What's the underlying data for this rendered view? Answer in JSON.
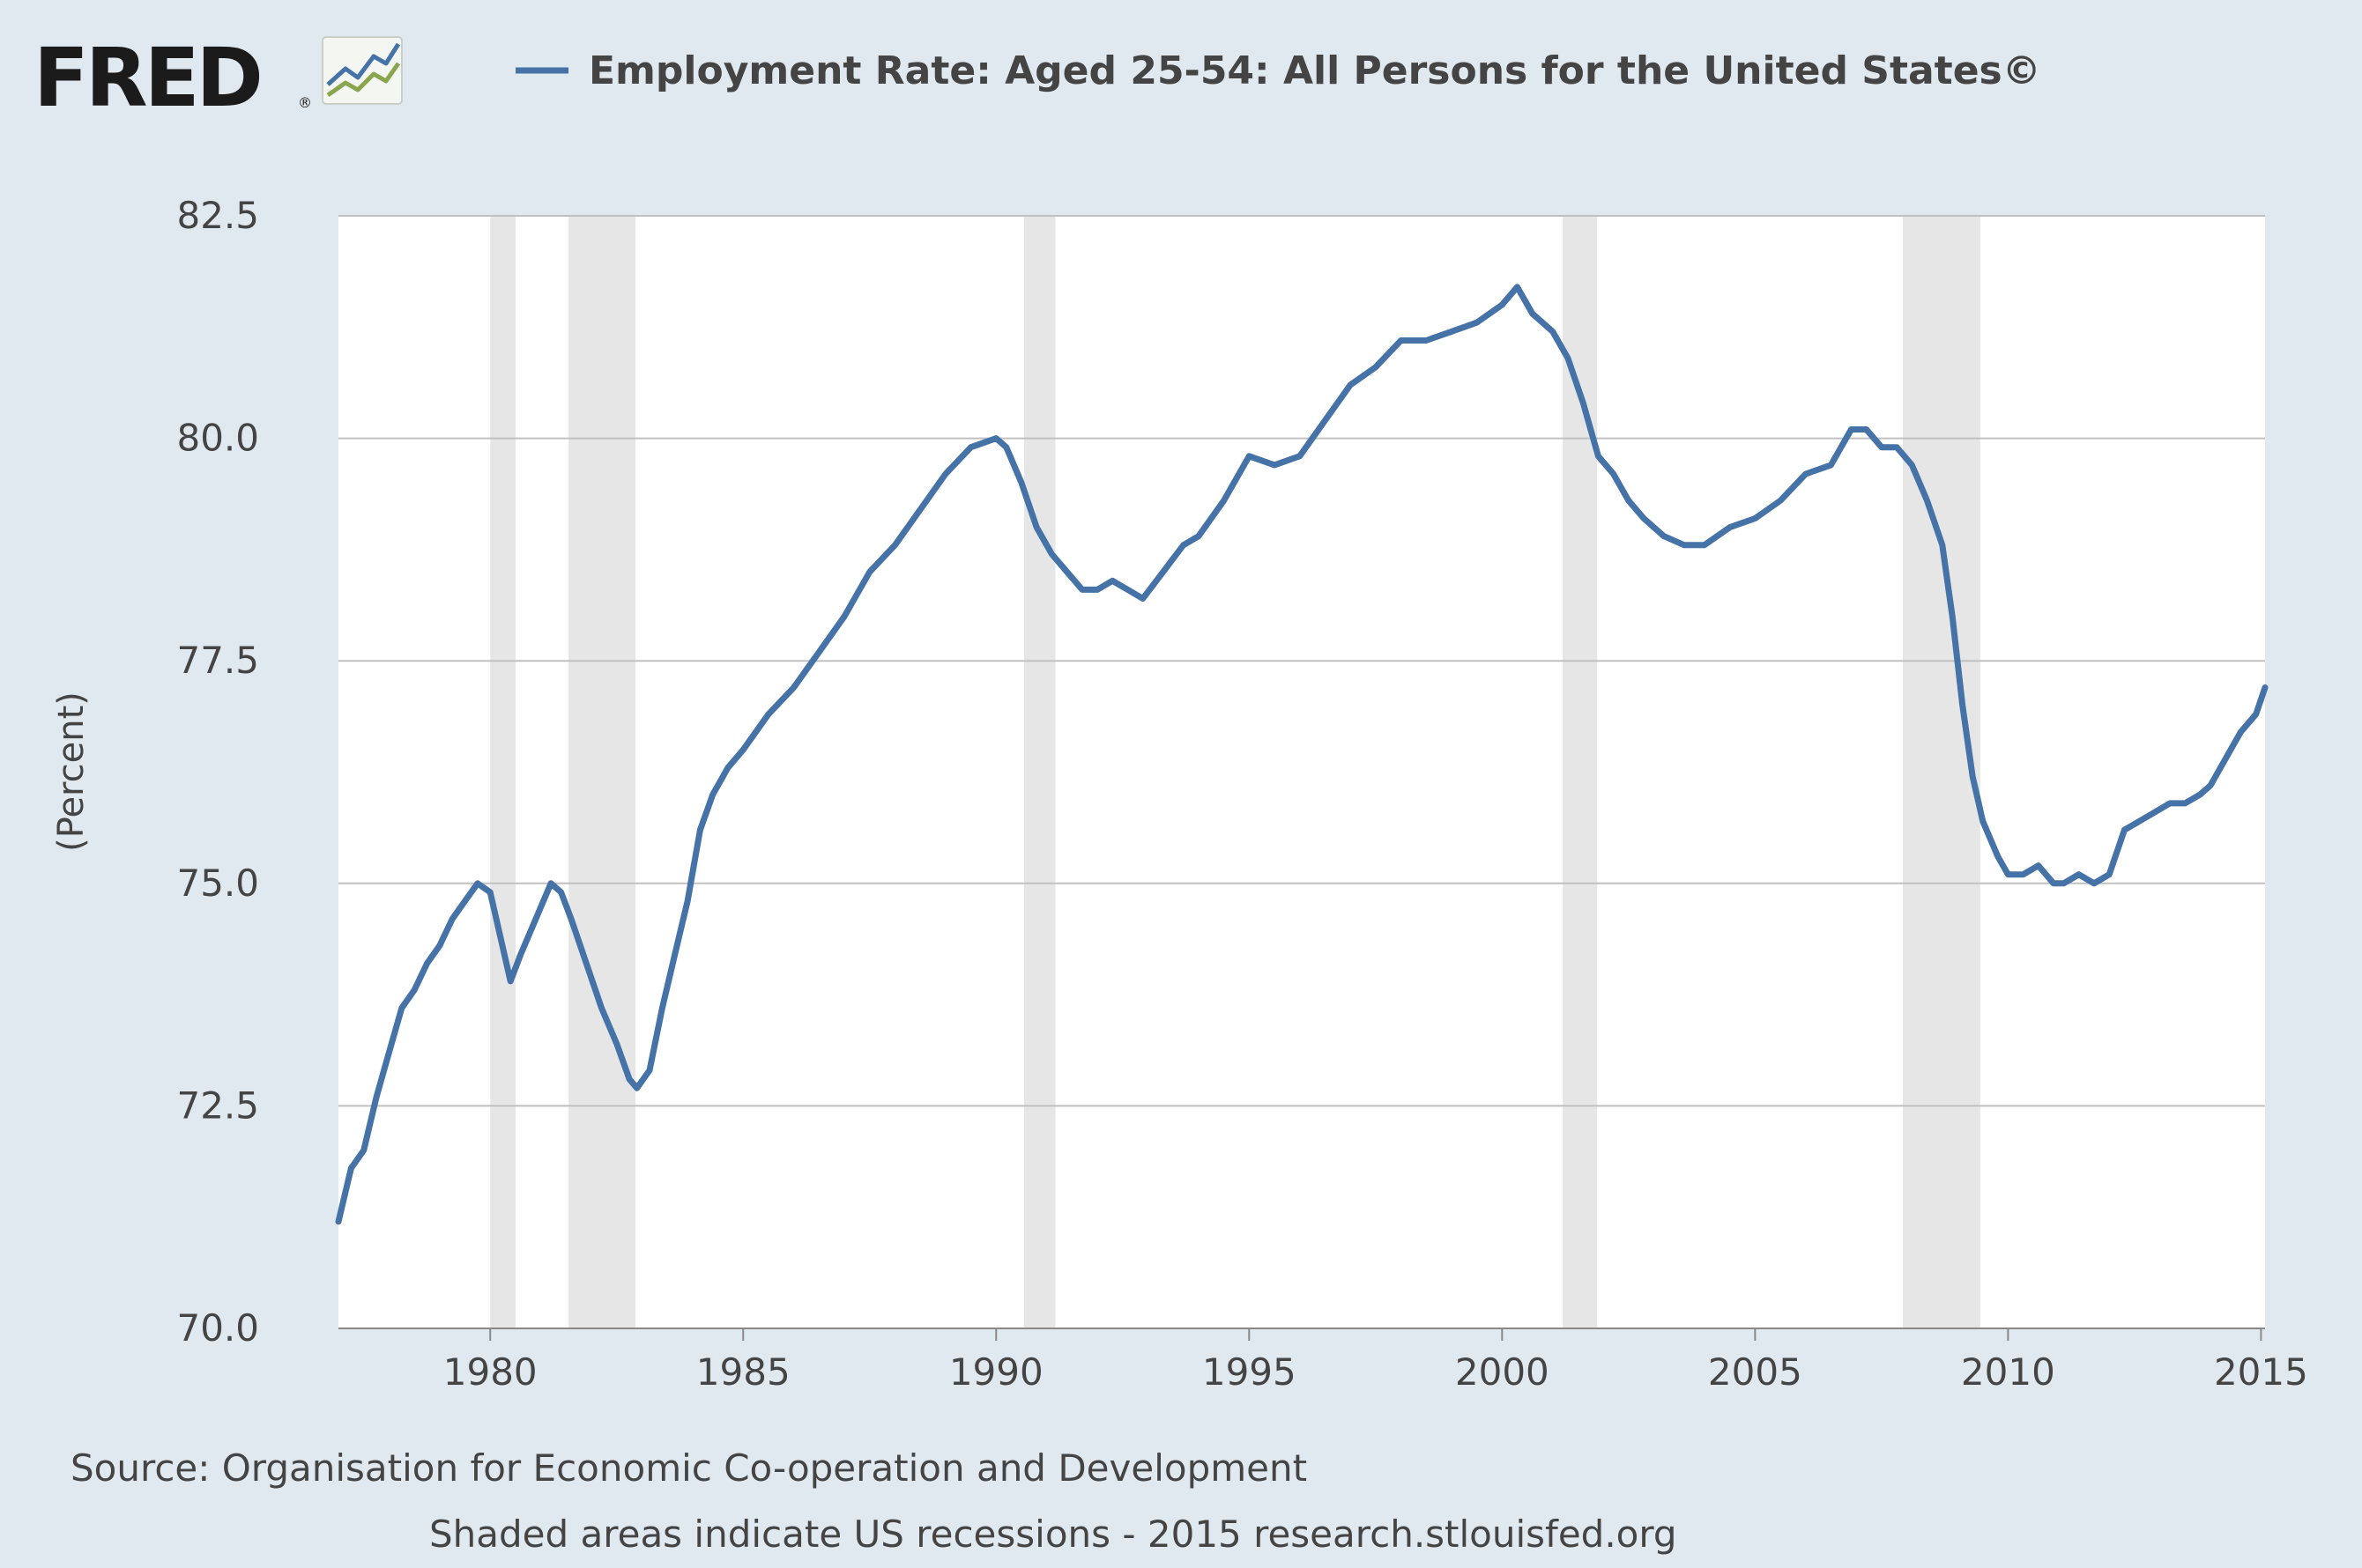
{
  "logo": {
    "text": "FRED",
    "registered": "®",
    "icon": "fred-chart-icon"
  },
  "colors": {
    "background": "#e1e9f0",
    "plot_background": "#ffffff",
    "series_line": "#4572a7",
    "recession_shade": "#e6e6e6",
    "grid": "#c0c0c0",
    "logo_line_blue": "#4572a7",
    "logo_line_green": "#89a54e"
  },
  "chart_data": {
    "type": "line",
    "title": "Employment Rate: Aged 25-54: All Persons for the United States©",
    "ylabel": "(Percent)",
    "xlabel": "",
    "ylim": [
      70,
      82.5
    ],
    "xlim": [
      1977.0,
      2015.08
    ],
    "yticks": [
      "70.0",
      "72.5",
      "75.0",
      "77.5",
      "80.0",
      "82.5"
    ],
    "xticks": [
      "1980",
      "1985",
      "1990",
      "1995",
      "2000",
      "2005",
      "2010",
      "2015"
    ],
    "grid": true,
    "legend": "top",
    "recessions": [
      [
        1980.0,
        1980.5
      ],
      [
        1981.55,
        1982.87
      ],
      [
        1990.55,
        1991.17
      ],
      [
        2001.2,
        2001.88
      ],
      [
        2007.92,
        2009.45
      ]
    ],
    "series": [
      {
        "name": "Employment Rate: Aged 25-54: All Persons for the United States©",
        "x": [
          1977.0,
          1977.25,
          1977.5,
          1977.75,
          1978.0,
          1978.25,
          1978.5,
          1978.75,
          1979.0,
          1979.25,
          1979.5,
          1979.75,
          1980.0,
          1980.2,
          1980.4,
          1980.6,
          1980.9,
          1981.2,
          1981.4,
          1981.6,
          1981.9,
          1982.2,
          1982.5,
          1982.75,
          1982.9,
          1983.15,
          1983.4,
          1983.65,
          1983.9,
          1984.15,
          1984.4,
          1984.7,
          1985.0,
          1985.5,
          1986.0,
          1986.5,
          1987.0,
          1987.5,
          1988.0,
          1988.5,
          1989.0,
          1989.5,
          1990.0,
          1990.2,
          1990.5,
          1990.8,
          1991.1,
          1991.4,
          1991.7,
          1992.0,
          1992.3,
          1992.6,
          1992.9,
          1993.3,
          1993.7,
          1994.0,
          1994.5,
          1995.0,
          1995.5,
          1996.0,
          1996.5,
          1997.0,
          1997.5,
          1998.0,
          1998.5,
          1999.0,
          1999.5,
          2000.0,
          2000.3,
          2000.6,
          2001.0,
          2001.3,
          2001.6,
          2001.9,
          2002.2,
          2002.5,
          2002.8,
          2003.2,
          2003.6,
          2004.0,
          2004.5,
          2005.0,
          2005.5,
          2006.0,
          2006.5,
          2006.9,
          2007.2,
          2007.5,
          2007.8,
          2008.1,
          2008.4,
          2008.7,
          2008.9,
          2009.1,
          2009.3,
          2009.5,
          2009.8,
          2010.0,
          2010.3,
          2010.6,
          2010.9,
          2011.1,
          2011.4,
          2011.7,
          2012.0,
          2012.3,
          2012.6,
          2012.9,
          2013.2,
          2013.5,
          2013.8,
          2014.0,
          2014.3,
          2014.6,
          2014.9,
          2015.08
        ],
        "values": [
          71.2,
          71.8,
          72.0,
          72.6,
          73.1,
          73.6,
          73.8,
          74.1,
          74.3,
          74.6,
          74.8,
          75.0,
          74.9,
          74.4,
          73.9,
          74.2,
          74.6,
          75.0,
          74.9,
          74.6,
          74.1,
          73.6,
          73.2,
          72.8,
          72.7,
          72.9,
          73.6,
          74.2,
          74.8,
          75.6,
          76.0,
          76.3,
          76.5,
          76.9,
          77.2,
          77.6,
          78.0,
          78.5,
          78.8,
          79.2,
          79.6,
          79.9,
          80.0,
          79.9,
          79.5,
          79.0,
          78.7,
          78.5,
          78.3,
          78.3,
          78.4,
          78.3,
          78.2,
          78.5,
          78.8,
          78.9,
          79.3,
          79.8,
          79.7,
          79.8,
          80.2,
          80.6,
          80.8,
          81.1,
          81.1,
          81.2,
          81.3,
          81.5,
          81.7,
          81.4,
          81.2,
          80.9,
          80.4,
          79.8,
          79.6,
          79.3,
          79.1,
          78.9,
          78.8,
          78.8,
          79.0,
          79.1,
          79.3,
          79.6,
          79.7,
          80.1,
          80.1,
          79.9,
          79.9,
          79.7,
          79.3,
          78.8,
          78.0,
          77.0,
          76.2,
          75.7,
          75.3,
          75.1,
          75.1,
          75.2,
          75.0,
          75.0,
          75.1,
          75.0,
          75.1,
          75.6,
          75.7,
          75.8,
          75.9,
          75.9,
          76.0,
          76.1,
          76.4,
          76.7,
          76.9,
          77.2
        ]
      }
    ]
  },
  "footer": {
    "source": "Source: Organisation for Economic Co-operation and Development",
    "note": "Shaded areas indicate US recessions - 2015 research.stlouisfed.org"
  }
}
